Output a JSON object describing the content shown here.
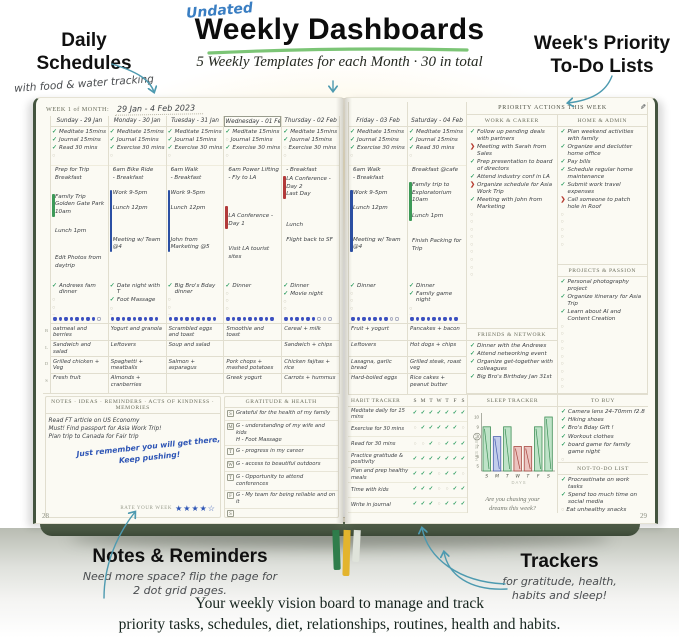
{
  "header": {
    "tagline": "Undated",
    "title": "Weekly Dashboards",
    "subtitle": "5 Weekly Templates for each Month  ·  30 in total"
  },
  "callouts": {
    "daily": {
      "title_line1": "Daily",
      "title_line2": "Schedules",
      "sub": "with food & water tracking"
    },
    "priority": {
      "title_line1": "Week's Priority",
      "title_line2": "To-Do Lists"
    },
    "notes": {
      "title": "Notes & Reminders",
      "sub_line1": "Need more space? flip the page for",
      "sub_line2": "2 dot grid pages."
    },
    "trackers": {
      "title": "Trackers",
      "sub_line1": "for gratitude, health,",
      "sub_line2": "habits and sleep!"
    }
  },
  "page": {
    "footer_line1": "Your weekly vision board to manage and track",
    "footer_line2": "priority tasks, schedules, diet, relationships, routines, health and habits."
  },
  "left_page": {
    "week_label": "WEEK 1 of MONTH:",
    "week_dates": "29 Jan   -   4 Feb  2023",
    "page_number": "28",
    "meal_labels": [
      "B",
      "L",
      "D",
      "S"
    ],
    "days": [
      {
        "name": "Sunday",
        "date": "29 Jan",
        "habits": [
          {
            "t": "Meditate 15mins",
            "s": "done"
          },
          {
            "t": "Journal 15mins",
            "s": "done"
          },
          {
            "t": "Read 30 mins",
            "s": "done"
          }
        ],
        "schedule": [
          {
            "t": "Prep for Trip\nBreakfast"
          },
          {
            "t": "Family Trip\nGolden Gate Park 10am",
            "bar": "green",
            "mt": 10
          },
          {
            "t": "Lunch 1pm",
            "mt": 10
          },
          {
            "t": "Edit Photos from daytrip",
            "mt": 18
          }
        ],
        "tasks": [
          {
            "t": "Andrews fam dinner",
            "s": "done"
          }
        ],
        "water_filled": 8,
        "water_total": 9,
        "meals": [
          "oatmeal and berries",
          "Sandwich and salad",
          "Grilled chicken + Veg",
          "Fresh fruit"
        ]
      },
      {
        "name": "Monday",
        "date": "30 Jan",
        "habits": [
          {
            "t": "Meditate 15mins",
            "s": "done"
          },
          {
            "t": "Journal 15mins",
            "s": "done"
          },
          {
            "t": "Exercise 30 mins",
            "s": "done"
          }
        ],
        "schedule": [
          {
            "t": "6am Bike Ride\n- Breakfast"
          },
          {
            "t": "Work 9-5pm\n\nLunch 12pm\n\n\n\nMeeting w/ Team @4",
            "bar": "blue",
            "mt": 6
          }
        ],
        "tasks": [
          {
            "t": "Date night with T",
            "s": "done"
          },
          {
            "t": "Foot Massage",
            "s": "done"
          }
        ],
        "water_filled": 9,
        "water_total": 9,
        "meals": [
          "Yogurt and granola",
          "Leftovers",
          "Spaghetti + meatballs",
          "Almonds + cranberries"
        ]
      },
      {
        "name": "Tuesday",
        "date": "31 Jan",
        "habits": [
          {
            "t": "Meditate 15mins",
            "s": "done"
          },
          {
            "t": "Journal 15mins",
            "s": "done"
          },
          {
            "t": "Exercise 30 mins",
            "s": "done"
          }
        ],
        "schedule": [
          {
            "t": "6am Walk\n- Breakfast"
          },
          {
            "t": "Work 9-5pm\n\nLunch 12pm\n\n\n\nJohn from Marketing @5",
            "bar": "blue",
            "mt": 6
          }
        ],
        "tasks": [
          {
            "t": "Big Bro's Bday dinner",
            "s": "done"
          }
        ],
        "water_filled": 9,
        "water_total": 9,
        "meals": [
          "Scrambled eggs and toast",
          "Soup and salad",
          "Salmon + asparagus",
          ""
        ]
      },
      {
        "name": "Wednesday",
        "date": "01 Feb",
        "hl": true,
        "habits": [
          {
            "t": "Meditate 15mins",
            "s": "done"
          },
          {
            "t": "Journal 15mins",
            "s": "open"
          },
          {
            "t": "Exercise 30 mins",
            "s": "done"
          }
        ],
        "schedule": [
          {
            "t": "6am Power Lifting\n- Fly to LA"
          },
          {
            "t": "\nLA Conference - Day 1\n",
            "bar": "red",
            "mt": 22
          },
          {
            "t": "Visit LA tourist sites",
            "mt": 16
          }
        ],
        "tasks": [
          {
            "t": "Dinner",
            "s": "done"
          }
        ],
        "water_filled": 9,
        "water_total": 9,
        "meals": [
          "Smoothie and toast",
          "",
          "Pork chops + mashed potatoes",
          "Greek yogurt"
        ]
      },
      {
        "name": "Thursday",
        "date": "02 Feb",
        "habits": [
          {
            "t": "Meditate 15mins",
            "s": "done"
          },
          {
            "t": "Journal 15mins",
            "s": "done"
          },
          {
            "t": "Exercise 30 mins",
            "s": "open"
          }
        ],
        "schedule": [
          {
            "t": "- Breakfast"
          },
          {
            "t": "LA Conference - Day 2\nLast Day",
            "bar": "red"
          },
          {
            "t": "Lunch",
            "mt": 22
          },
          {
            "t": "Flight back to SF",
            "mt": 6
          }
        ],
        "tasks": [
          {
            "t": "Dinner",
            "s": "done"
          },
          {
            "t": "Movie night",
            "s": "done"
          }
        ],
        "water_filled": 6,
        "water_total": 9,
        "meals": [
          "Cereal + milk",
          "Sandwich + chips",
          "Chicken fajitas + rice",
          "Carrots + hummus"
        ]
      }
    ],
    "notes_section": {
      "header": "NOTES · IDEAS · REMINDERS · ACTS OF KINDNESS · MEMORIES",
      "items": [
        "Read FT article on US Economy",
        "Must! Find passport for Asia Work Trip!",
        "Plan trip to Canada for Fair trip"
      ],
      "hand_note_line1": "Just remember you will get there,",
      "hand_note_line2": "Keep pushing!",
      "rate_label": "RATE YOUR WEEK",
      "stars_filled": 4,
      "stars_total": 5
    },
    "gratitude_section": {
      "header": "GRATITUDE & HEALTH",
      "rows": [
        {
          "day": "S",
          "text": "Grateful for the health of my family"
        },
        {
          "day": "M",
          "text": "G - understanding of my wife and kids\nH - Foot Massage"
        },
        {
          "day": "T",
          "text": "G - progress in my career"
        },
        {
          "day": "W",
          "text": "G - access to beautiful outdoors"
        },
        {
          "day": "T",
          "text": "G - Opportunity to attend conferences"
        },
        {
          "day": "F",
          "text": "G - My team for being reliable and on it"
        },
        {
          "day": "S",
          "text": ""
        }
      ]
    }
  },
  "right_page": {
    "page_number": "29",
    "priority_header": "PRIORITY ACTIONS THIS WEEK",
    "pen_icon": "✎",
    "days": [
      {
        "name": "Friday",
        "date": "03 Feb",
        "habits": [
          {
            "t": "Meditate 15mins",
            "s": "done"
          },
          {
            "t": "Journal 15mins",
            "s": "done"
          },
          {
            "t": "Exercise 30 mins",
            "s": "done"
          }
        ],
        "schedule": [
          {
            "t": "6am Walk\n- Breakfast"
          },
          {
            "t": "Work 9-5pm\n\nLunch 12pm\n\n\n\nMeeting w/ Team @4",
            "bar": "blue",
            "mt": 6
          }
        ],
        "tasks": [
          {
            "t": "Dinner",
            "s": "done"
          }
        ],
        "water_filled": 7,
        "water_total": 9,
        "meals": [
          "Fruit + yogurt",
          "Leftovers",
          "Lasagna, garlic bread",
          "Hard-boiled eggs"
        ]
      },
      {
        "name": "Saturday",
        "date": "04 Feb",
        "habits": [
          {
            "t": "Meditate 15mins",
            "s": "done"
          },
          {
            "t": "Journal 15mins",
            "s": "done"
          },
          {
            "t": "Read 30 mins",
            "s": "done"
          }
        ],
        "schedule": [
          {
            "t": "Breakfast @cafe"
          },
          {
            "t": "Family trip to\nExploratorium 10am\n\nLunch 1pm",
            "bar": "green",
            "mt": 6
          },
          {
            "t": "Finish Packing for Trip",
            "mt": 16
          }
        ],
        "tasks": [
          {
            "t": "Dinner",
            "s": "done"
          },
          {
            "t": "Family game night",
            "s": "done"
          }
        ],
        "water_filled": 9,
        "water_total": 9,
        "meals": [
          "Pancakes + bacon",
          "Hot dogs + chips",
          "Grilled steak, roast veg",
          "Rice cakes + peanut butter"
        ]
      }
    ],
    "work_career": {
      "header": "WORK & CAREER",
      "items": [
        {
          "t": "Follow up pending deals with partners",
          "s": "done"
        },
        {
          "t": "Meeting with Sarah from Sales",
          "s": "flag"
        },
        {
          "t": "Prep presentation to board of directors",
          "s": "done"
        },
        {
          "t": "Attend industry conf in LA",
          "s": "done"
        },
        {
          "t": "Organize schedule for Asia Work Trip",
          "s": "flag"
        },
        {
          "t": "Meeting with John from Marketing",
          "s": "done"
        }
      ],
      "empty_rows": 9
    },
    "home_admin": {
      "header": "HOME & ADMIN",
      "items": [
        {
          "t": "Plan weekend activities with family",
          "s": "done"
        },
        {
          "t": "Organize and declutter home office",
          "s": "done"
        },
        {
          "t": "Pay bills",
          "s": "done"
        },
        {
          "t": "Schedule regular home maintenance",
          "s": "done"
        },
        {
          "t": "Submit work travel expenses",
          "s": "done"
        },
        {
          "t": "Call someone to patch hole in Roof",
          "s": "flag"
        }
      ],
      "empty_rows": 5
    },
    "projects_passion": {
      "header": "PROJECTS & PASSION",
      "items": [
        {
          "t": "Personal photography project",
          "s": "done"
        },
        {
          "t": "Organize itinerary for Asia Trip",
          "s": "done"
        },
        {
          "t": "Learn about AI and Content Creation",
          "s": "done"
        }
      ],
      "empty_rows": 9
    },
    "friends_network": {
      "header": "FRIENDS & NETWORK",
      "items": [
        {
          "t": "Dinner with the Andrews",
          "s": "done"
        },
        {
          "t": "Attend networking event",
          "s": "done"
        },
        {
          "t": "Organize get-together with colleagues",
          "s": "done"
        },
        {
          "t": "Big Bro's Birthday Jan 31st",
          "s": "done"
        }
      ],
      "empty_rows": 0
    },
    "habit_tracker": {
      "header": "HABIT TRACKER",
      "day_letters": [
        "S",
        "M",
        "T",
        "W",
        "T",
        "F",
        "S"
      ],
      "rows": [
        {
          "label": "Meditate daily for 15 mins",
          "checks": [
            1,
            1,
            1,
            1,
            1,
            1,
            1
          ]
        },
        {
          "label": "Exercise for 30 mins",
          "checks": [
            0,
            1,
            1,
            1,
            1,
            1,
            0
          ]
        },
        {
          "label": "Read for 30 mins",
          "checks": [
            0,
            0,
            1,
            0,
            1,
            1,
            1
          ]
        },
        {
          "label": "Practice gratitude & positivity",
          "checks": [
            1,
            1,
            1,
            1,
            1,
            1,
            1
          ]
        },
        {
          "label": "Plan and prep healthy meals",
          "checks": [
            1,
            1,
            1,
            0,
            1,
            1,
            0
          ]
        },
        {
          "label": "Time with kids",
          "checks": [
            1,
            1,
            1,
            0,
            0,
            1,
            1
          ]
        },
        {
          "label": "Write in journal",
          "checks": [
            1,
            1,
            1,
            0,
            1,
            1,
            1
          ]
        }
      ]
    },
    "sleep_tracker": {
      "header": "SLEEP TRACKER",
      "ylabel": "HRS SLEPT",
      "xlabel": "DAYS",
      "y_ticks": [
        10,
        9,
        8,
        7,
        6,
        5
      ],
      "circled_tick": 8,
      "day_letters": [
        "S",
        "M",
        "T",
        "W",
        "T",
        "F",
        "S"
      ],
      "values": [
        9,
        8,
        9,
        7,
        7,
        9,
        10
      ],
      "colors": [
        "green",
        "blue",
        "green",
        "red",
        "red",
        "green",
        "green"
      ],
      "prompt_line1": "Are you chasing your",
      "prompt_line2": "dreams this week?"
    },
    "to_buy": {
      "header": "TO BUY",
      "items": [
        {
          "t": "Camera lens 24-70mm f2.8",
          "s": "done"
        },
        {
          "t": "Hiking shoes",
          "s": "done"
        },
        {
          "t": "Bro's Bday Gift !",
          "s": "done"
        },
        {
          "t": "Workout clothes",
          "s": "done"
        },
        {
          "t": "board game for family game night",
          "s": "done"
        }
      ],
      "empty_rows": 3
    },
    "not_to_do": {
      "header": "NOT-TO-DO LIST",
      "items": [
        {
          "t": "Procrastinate on work tasks",
          "s": "done"
        },
        {
          "t": "Spend too much time on social media",
          "s": "done"
        },
        {
          "t": "Eat unhealthy snacks",
          "s": "open"
        },
        {
          "t": "Neglect self-care",
          "s": "done"
        }
      ],
      "empty_rows": 0
    }
  },
  "colors": {
    "accent_green": "#7cc576",
    "arrow_teal": "#4d9ab0",
    "check_green": "#2f9e62",
    "flag_red": "#b63c31",
    "bar_blue": "#2b4fa3",
    "bar_green": "#3d9a58",
    "bar_red": "#b23a3a",
    "ink_blue": "#2e55b5",
    "cover_green": "#44543f",
    "ribbon_yellow": "#e3b42e"
  }
}
